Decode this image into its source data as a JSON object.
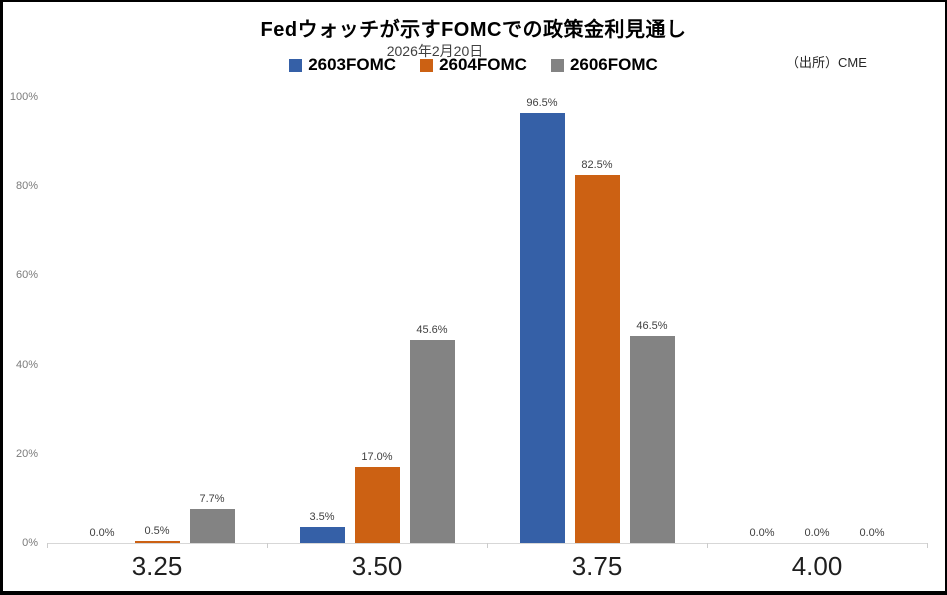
{
  "source": {
    "label": "（出所）CME"
  },
  "chart_data": {
    "type": "bar",
    "title": "Fedウォッチが示すFOMCでの政策金利見通し",
    "subtitle": "2026年2月20日",
    "categories": [
      "3.25",
      "3.50",
      "3.75",
      "4.00"
    ],
    "series": [
      {
        "name": "2603FOMC",
        "color": "#3560a7",
        "values": [
          0.0,
          3.5,
          96.5,
          0.0
        ]
      },
      {
        "name": "2604FOMC",
        "color": "#cc6113",
        "values": [
          0.5,
          17.0,
          82.5,
          0.0
        ]
      },
      {
        "name": "2606FOMC",
        "color": "#838383",
        "values": [
          7.7,
          45.6,
          46.5,
          0.0
        ]
      }
    ],
    "value_labels": [
      [
        "0.0%",
        "3.5%",
        "96.5%",
        "0.0%"
      ],
      [
        "0.5%",
        "17.0%",
        "82.5%",
        "0.0%"
      ],
      [
        "7.7%",
        "45.6%",
        "46.5%",
        "0.0%"
      ]
    ],
    "xlabel": "",
    "ylabel": "",
    "ylim": [
      0,
      100
    ],
    "yticks": [
      0,
      20,
      40,
      60,
      80,
      100
    ],
    "ytick_suffix": "%",
    "grid": false,
    "legend_position": "top"
  }
}
